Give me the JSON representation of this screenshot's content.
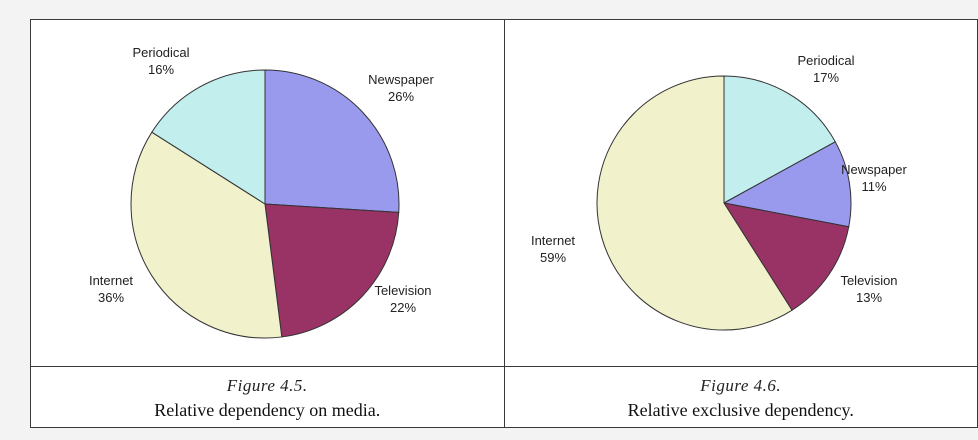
{
  "colors": {
    "Periodical": "#c2eeee",
    "Newspaper": "#9999ee",
    "Television": "#993366",
    "Internet": "#f1f1cc",
    "border": "#3a3a3a",
    "pie_edge": "#333333"
  },
  "chart_data": [
    {
      "type": "pie",
      "title": "",
      "start_angle_deg": 0,
      "direction": "clockwise",
      "slices": [
        {
          "name": "Newspaper",
          "value": 26,
          "label": "26%"
        },
        {
          "name": "Television",
          "value": 22,
          "label": "22%"
        },
        {
          "name": "Internet",
          "value": 36,
          "label": "36%"
        },
        {
          "name": "Periodical",
          "value": 16,
          "label": "16%"
        }
      ]
    },
    {
      "type": "pie",
      "title": "",
      "start_angle_deg": 0,
      "direction": "clockwise",
      "slices": [
        {
          "name": "Periodical",
          "value": 17,
          "label": "17%"
        },
        {
          "name": "Newspaper",
          "value": 11,
          "label": "11%"
        },
        {
          "name": "Television",
          "value": 13,
          "label": "13%"
        },
        {
          "name": "Internet",
          "value": 59,
          "label": "59%"
        }
      ]
    }
  ],
  "captions": [
    {
      "figure": "Figure 4.5.",
      "description": "Relative dependency on media."
    },
    {
      "figure": "Figure 4.6.",
      "description": "Relative exclusive dependency."
    }
  ]
}
